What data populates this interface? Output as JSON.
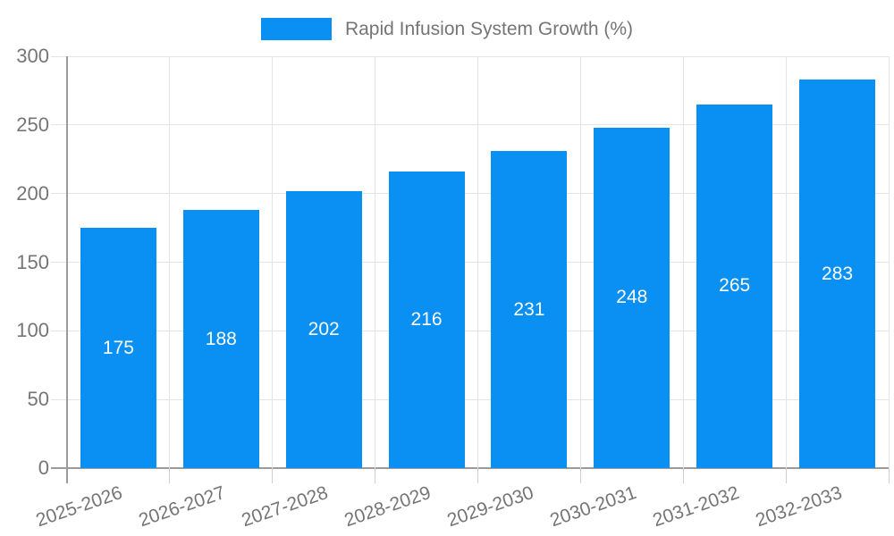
{
  "chart_data": {
    "type": "bar",
    "title": "Rapid Infusion System Growth (%)",
    "categories": [
      "2025-2026",
      "2026-2027",
      "2027-2028",
      "2028-2029",
      "2029-2030",
      "2030-2031",
      "2031-2032",
      "2032-2033"
    ],
    "values": [
      175,
      188,
      202,
      216,
      231,
      248,
      265,
      283
    ],
    "xlabel": "",
    "ylabel": "",
    "ylim": [
      0,
      300
    ],
    "yticks": [
      0,
      50,
      100,
      150,
      200,
      250,
      300
    ],
    "grid": true,
    "legend_position": "top-center",
    "value_labels": "white, centered inside bars",
    "colors": {
      "bar": "#0A8FF2",
      "value_label": "#ffffff",
      "axis_text": "#757575",
      "gridline": "#e4e4e4",
      "tick": "#cfcfcf",
      "axis_line": "#9b9b9b",
      "background": "#ffffff"
    }
  }
}
